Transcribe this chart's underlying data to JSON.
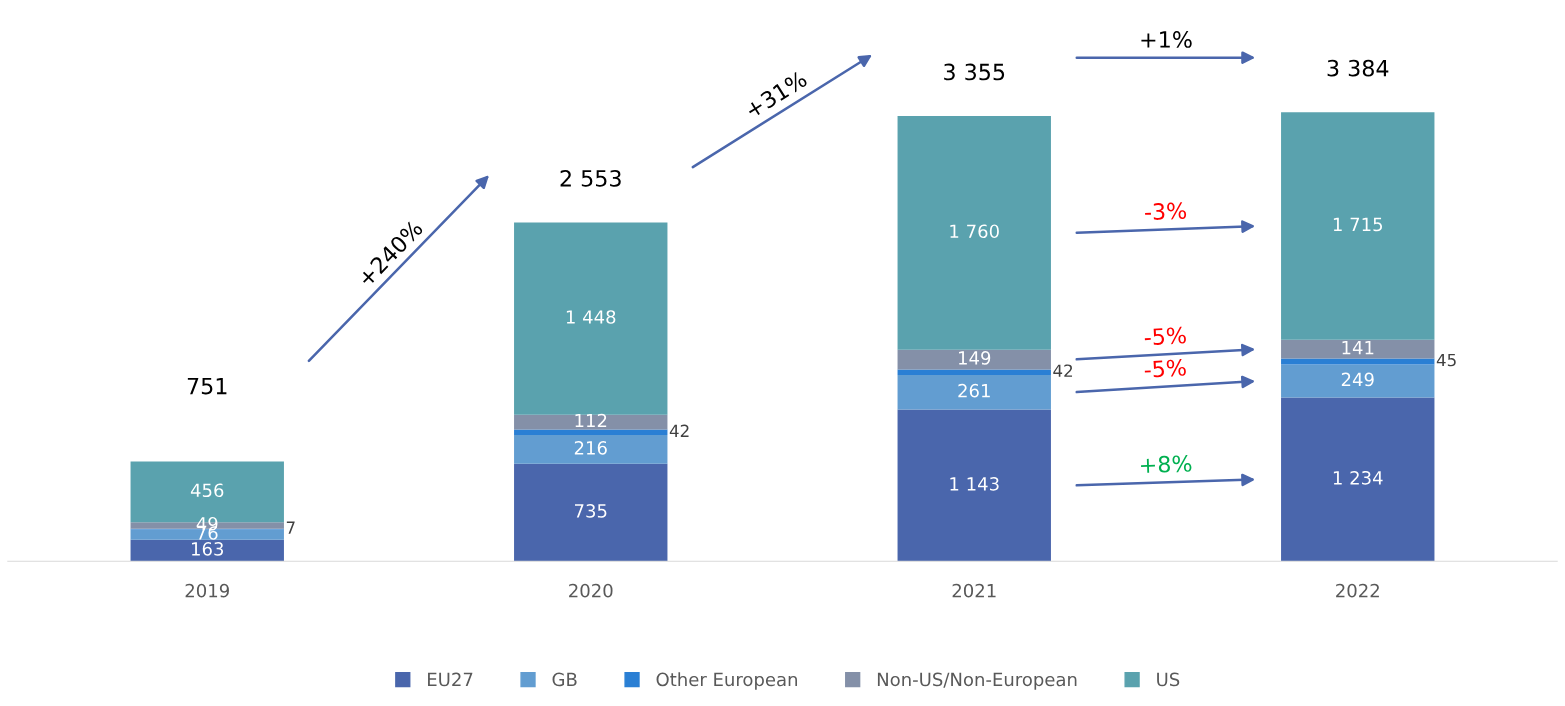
{
  "chart_data": {
    "type": "bar",
    "stacked": true,
    "legend": "bottom",
    "grid": false,
    "categories": [
      "2019",
      "2020",
      "2021",
      "2022"
    ],
    "series": [
      {
        "name": "EU27",
        "color": "#4a66ac",
        "values": [
          163,
          735,
          1143,
          1234
        ],
        "value_labels": [
          "163",
          "735",
          "1 143",
          "1 234"
        ]
      },
      {
        "name": "GB",
        "color": "#629dd1",
        "values": [
          76,
          216,
          261,
          249
        ],
        "value_labels": [
          "76",
          "216",
          "261",
          "249"
        ]
      },
      {
        "name": "Other European",
        "color": "#2a7fd4",
        "values": [
          7,
          42,
          42,
          45
        ],
        "value_labels": [
          "7",
          "42",
          "42",
          "45"
        ]
      },
      {
        "name": "Non-US/Non-European",
        "color": "#8490a8",
        "values": [
          49,
          112,
          149,
          141
        ],
        "value_labels": [
          "49",
          "112",
          "149",
          "141"
        ]
      },
      {
        "name": "US",
        "color": "#5aa2ae",
        "values": [
          456,
          1448,
          1760,
          1715
        ],
        "value_labels": [
          "456",
          "1 448",
          "1 760",
          "1 715"
        ]
      }
    ],
    "totals": [
      "751",
      "2 553",
      "3 355",
      "3 384"
    ],
    "annotations": [
      "+240%",
      "+31%",
      "+1%",
      "-3%",
      "-5%",
      "-5%",
      "+8%"
    ]
  }
}
